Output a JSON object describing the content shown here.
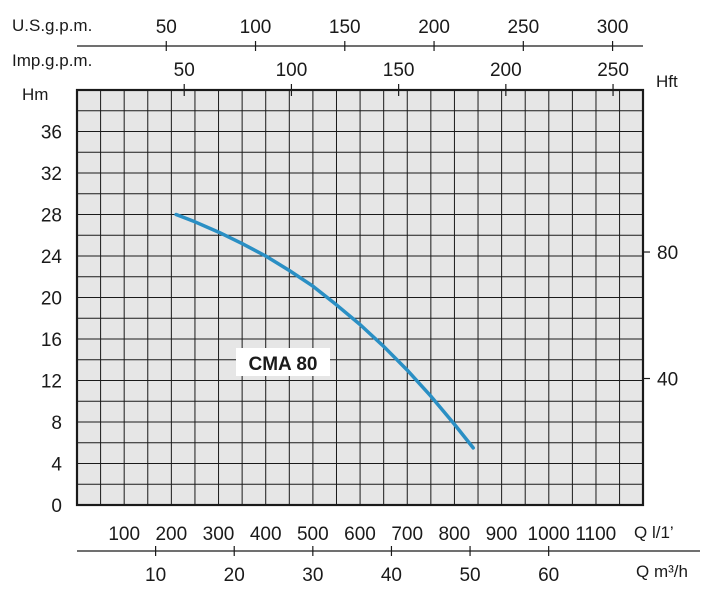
{
  "chart_data": {
    "type": "line",
    "title": "",
    "series": [
      {
        "name": "CMA 80",
        "x": [
          210,
          250,
          300,
          350,
          400,
          450,
          500,
          550,
          600,
          650,
          700,
          750,
          800,
          840
        ],
        "y": [
          28,
          27.3,
          26.3,
          25.2,
          24.0,
          22.6,
          21.1,
          19.3,
          17.4,
          15.3,
          13.0,
          10.5,
          7.8,
          5.5
        ]
      }
    ],
    "axes": {
      "left": {
        "label": "Hm",
        "ticks": [
          0,
          4,
          8,
          12,
          16,
          20,
          24,
          28,
          32,
          36
        ],
        "range": [
          0,
          40
        ]
      },
      "right": {
        "label": "Hft",
        "ticks": [
          40,
          80
        ]
      },
      "bottom_lpm": {
        "label": "Q l/1’",
        "ticks": [
          100,
          200,
          300,
          400,
          500,
          600,
          700,
          800,
          900,
          1000,
          1100
        ],
        "range": [
          0,
          1200
        ]
      },
      "bottom_m3h": {
        "label": "Q m³/h",
        "ticks": [
          10,
          20,
          30,
          40,
          50,
          60
        ]
      },
      "top_usgpm": {
        "label": "U.S.g.p.m.",
        "ticks": [
          50,
          100,
          150,
          200,
          250,
          300
        ]
      },
      "top_impgpm": {
        "label": "Imp.g.p.m.",
        "ticks": [
          50,
          100,
          150,
          200,
          250
        ]
      }
    },
    "grid": true,
    "colors": {
      "curve": "#2a8fc4",
      "grid": "#1a1a1a",
      "plot_bg": "#e6e6e6"
    }
  }
}
